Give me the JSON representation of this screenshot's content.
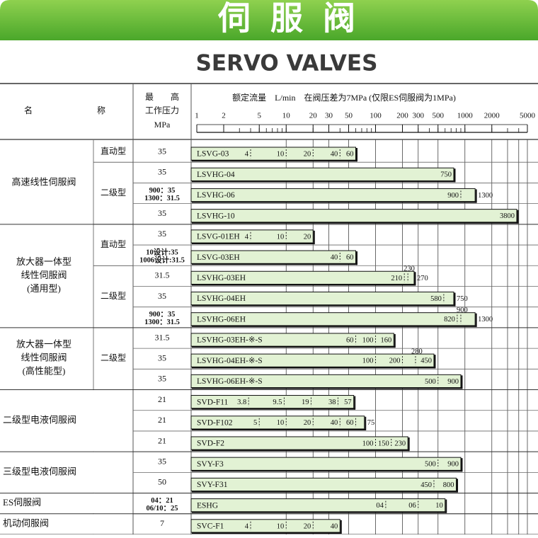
{
  "header": {
    "title": "伺 服 阀",
    "subtitle": "SERVO VALVES"
  },
  "table": {
    "col_name": [
      "名",
      "称"
    ],
    "col_pressure": [
      "最　　高",
      "工作压力",
      "MPa"
    ],
    "flow_title": "额定流量　L/min　在阀压差为7MPa (仅限ES伺服阀为1MPa)"
  },
  "chart_data": {
    "type": "bar",
    "log_scale": true,
    "color": "#e2f2d4",
    "xlim": [
      1,
      5000
    ],
    "xticks": [
      1,
      2,
      5,
      10,
      20,
      30,
      50,
      100,
      200,
      300,
      500,
      1000,
      2000,
      5000
    ],
    "minor_ticks": [
      1,
      2,
      3,
      4,
      5,
      6,
      7,
      8,
      9,
      10,
      20,
      30,
      40,
      50,
      60,
      70,
      80,
      90,
      100,
      200,
      300,
      400,
      500,
      600,
      700,
      800,
      900,
      1000,
      2000,
      3000,
      4000,
      5000
    ],
    "grid": [
      10,
      20,
      30,
      50,
      100,
      200,
      300,
      500,
      1000,
      2000,
      3000,
      4000,
      5000
    ],
    "groups": [
      {
        "name_lines": [
          "高速线性伺服阀"
        ],
        "subgroups": [
          {
            "type": "直动型",
            "rows": [
              {
                "model": "LSVG-03",
                "pressure": [
                  "35"
                ],
                "values": [
                  4,
                  10,
                  20,
                  40,
                  60
                ]
              }
            ]
          },
          {
            "type": "二级型",
            "rows": [
              {
                "model": "LSVHG-04",
                "pressure": [
                  "35"
                ],
                "values": [
                  750
                ]
              },
              {
                "model": "LSVHG-06",
                "pressure": [
                  "900：35",
                  "1300：31.5"
                ],
                "values": [
                  900,
                  1300
                ]
              },
              {
                "model": "LSVHG-10",
                "pressure": [
                  "35"
                ],
                "values": [
                  3800
                ]
              }
            ]
          }
        ]
      },
      {
        "name_lines": [
          "放大器一体型",
          "线性伺服阀",
          "(通用型)"
        ],
        "subgroups": [
          {
            "type": "直动型",
            "rows": [
              {
                "model": "LSVG-01EH",
                "pressure": [
                  "35"
                ],
                "values": [
                  4,
                  10,
                  20
                ]
              },
              {
                "model": "LSVG-03EH",
                "pressure": [
                  "10设计:35",
                  "1006设计:31.5"
                ],
                "values": [
                  40,
                  60
                ]
              }
            ]
          },
          {
            "type": "二级型",
            "rows": [
              {
                "model": "LSVHG-03EH",
                "pressure": [
                  "31.5"
                ],
                "values": [
                  210,
                  230,
                  270
                ]
              },
              {
                "model": "LSVHG-04EH",
                "pressure": [
                  "35"
                ],
                "values": [
                  580,
                  750
                ]
              },
              {
                "model": "LSVHG-06EH",
                "pressure": [
                  "900：35",
                  "1300：31.5"
                ],
                "values": [
                  820,
                  900,
                  1300
                ]
              }
            ]
          }
        ]
      },
      {
        "name_lines": [
          "放大器一体型",
          "线性伺服阀",
          "(高性能型)"
        ],
        "subgroups": [
          {
            "type": "二级型",
            "rows": [
              {
                "model": "LSVHG-03EH-※-S",
                "pressure": [
                  "31.5"
                ],
                "values": [
                  60,
                  100,
                  160
                ]
              },
              {
                "model": "LSVHG-04EH-※-S",
                "pressure": [
                  "35"
                ],
                "values": [
                  100,
                  200,
                  280,
                  450
                ]
              },
              {
                "model": "LSVHG-06EH-※-S",
                "pressure": [
                  "35"
                ],
                "values": [
                  500,
                  900
                ]
              }
            ]
          }
        ]
      },
      {
        "name_lines": [
          "二级型电液伺服阀"
        ],
        "subgroups": [
          {
            "rows": [
              {
                "model": "SVD-F11",
                "pressure": [
                  "21"
                ],
                "values": [
                  3.8,
                  9.5,
                  19,
                  38,
                  57
                ]
              },
              {
                "model": "SVD-F102",
                "pressure": [
                  "21"
                ],
                "values": [
                  5,
                  10,
                  20,
                  40,
                  60,
                  75
                ]
              },
              {
                "model": "SVD-F2",
                "pressure": [
                  "21"
                ],
                "values": [
                  100,
                  150,
                  230
                ]
              }
            ]
          }
        ]
      },
      {
        "name_lines": [
          "三级型电液伺服阀"
        ],
        "subgroups": [
          {
            "rows": [
              {
                "model": "SVY-F3",
                "pressure": [
                  "35"
                ],
                "values": [
                  500,
                  900
                ]
              },
              {
                "model": "SVY-F31",
                "pressure": [
                  "50"
                ],
                "values": [
                  450,
                  800
                ]
              }
            ]
          }
        ]
      },
      {
        "name_lines": [
          "ES伺服阀"
        ],
        "subgroups": [
          {
            "rows": [
              {
                "model": "ESHG",
                "pressure": [
                  "04：21",
                  "06/10：25"
                ],
                "values": [
                  130,
                  300,
                  600
                ],
                "labels": [
                  "04",
                  "06",
                  "10"
                ]
              }
            ]
          }
        ]
      },
      {
        "name_lines": [
          "机动伺服阀"
        ],
        "subgroups": [
          {
            "rows": [
              {
                "model": "SVC-F1",
                "pressure": [
                  "7"
                ],
                "values": [
                  4,
                  10,
                  20,
                  40
                ]
              }
            ]
          }
        ]
      }
    ]
  }
}
